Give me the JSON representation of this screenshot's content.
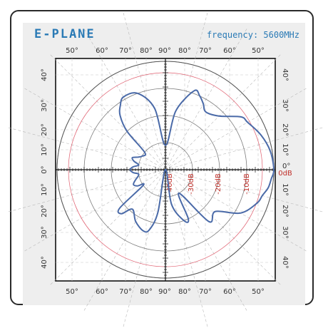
{
  "header": {
    "title": "E-PLANE",
    "frequency": "frequency: 5600MHz"
  },
  "chart_data": {
    "type": "polar",
    "top_ticks": [
      "50°",
      "60°",
      "70°",
      "80°",
      "90°",
      "80°",
      "70°",
      "60°",
      "50°"
    ],
    "bottom_ticks": [
      "50°",
      "60°",
      "70°",
      "80°",
      "90°",
      "80°",
      "70°",
      "60°",
      "50°"
    ],
    "left_ticks": [
      "40°",
      "30°",
      "20°",
      "10°",
      "0°",
      "10°",
      "20°",
      "30°",
      "40°"
    ],
    "right_ticks": [
      "40°",
      "30°",
      "20°",
      "10°",
      "0°",
      "10°",
      "20°",
      "30°",
      "40°"
    ],
    "ring_labels": [
      "-40dB",
      "-30dB",
      "-20dB",
      "-10dB",
      "0dB"
    ],
    "rlim_db": [
      -40,
      0
    ],
    "grid": true,
    "colors": {
      "pattern": "#4a6aa8",
      "ref_circle": "#e06070",
      "label_red": "#c0302a",
      "accent": "#2a7ab5"
    },
    "series": [
      {
        "angle_deg": [
          0,
          10,
          20,
          30,
          35,
          45,
          55,
          60,
          65,
          70,
          80,
          90,
          100,
          110,
          120,
          125,
          130,
          135,
          140,
          150,
          155,
          160,
          165,
          170,
          175,
          180,
          185,
          190,
          200,
          205,
          210,
          215,
          220,
          225,
          230,
          240,
          250,
          255,
          260,
          270,
          280,
          290,
          295,
          300,
          310,
          320,
          330,
          340,
          345,
          350,
          355
        ],
        "r_db": [
          0,
          -0.7,
          -2.5,
          -5,
          -6,
          -12,
          -14,
          -12,
          -10,
          -9,
          -18,
          -31,
          -17,
          -10,
          -9,
          -11,
          -14,
          -20,
          -30,
          -30,
          -29,
          -27,
          -28,
          -30,
          -28,
          -27,
          -28,
          -30,
          -28,
          -27,
          -28,
          -30,
          -18,
          -17,
          -21,
          -18,
          -16,
          -17,
          -24,
          -40,
          -27,
          -20,
          -20,
          -30,
          -15,
          -16,
          -8,
          -4,
          -3,
          -1.5,
          -0.8
        ]
      }
    ]
  }
}
